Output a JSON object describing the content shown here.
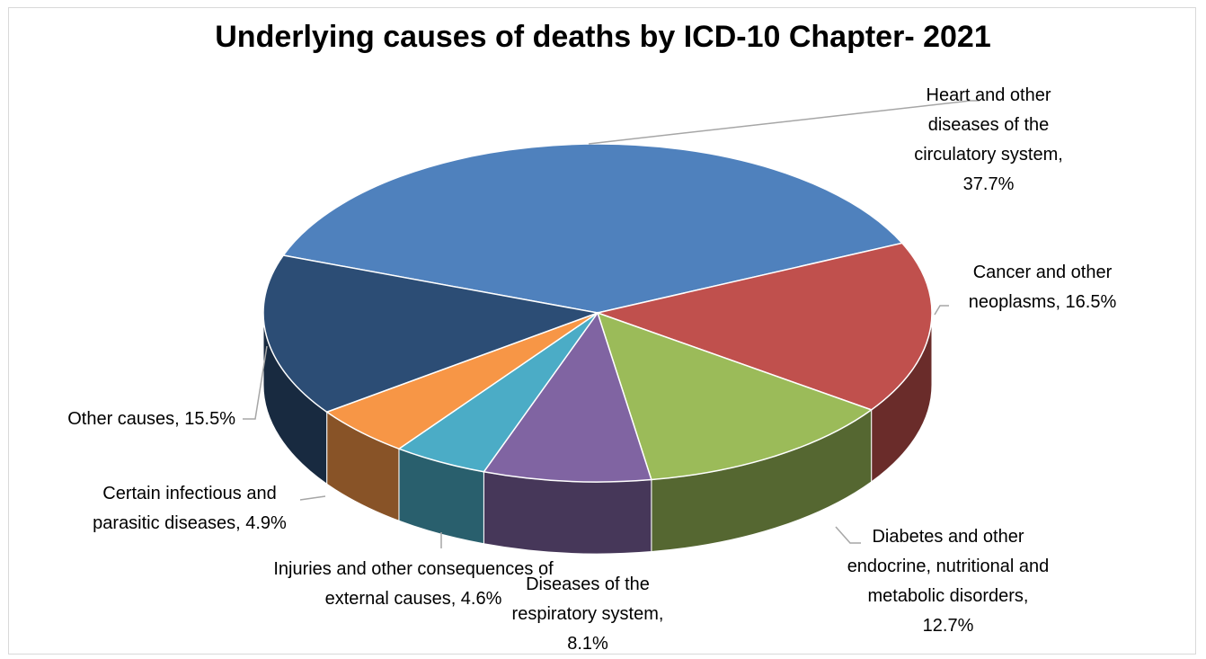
{
  "chart_data": {
    "type": "pie",
    "title": "Underlying causes of deaths by ICD-10 Chapter- 2021",
    "values": [
      37.7,
      16.5,
      12.7,
      8.1,
      4.6,
      4.9,
      15.5
    ],
    "value_labels": [
      "Heart and other diseases of the circulatory system, 37.7%",
      "Cancer and other neoplasms, 16.5%",
      "Diabetes and other endocrine, nutritional and metabolic disorders, 12.7%",
      "Diseases of the respiratory system, 8.1%",
      "Injuries and other consequences of external causes, 4.6%",
      "Certain infectious and parasitic diseases, 4.9%",
      "Other causes, 15.5%"
    ],
    "colors": [
      "#4f81bd",
      "#c0504d",
      "#9bbb59",
      "#8064a2",
      "#4bacc6",
      "#f79646",
      "#2c4d75"
    ]
  }
}
